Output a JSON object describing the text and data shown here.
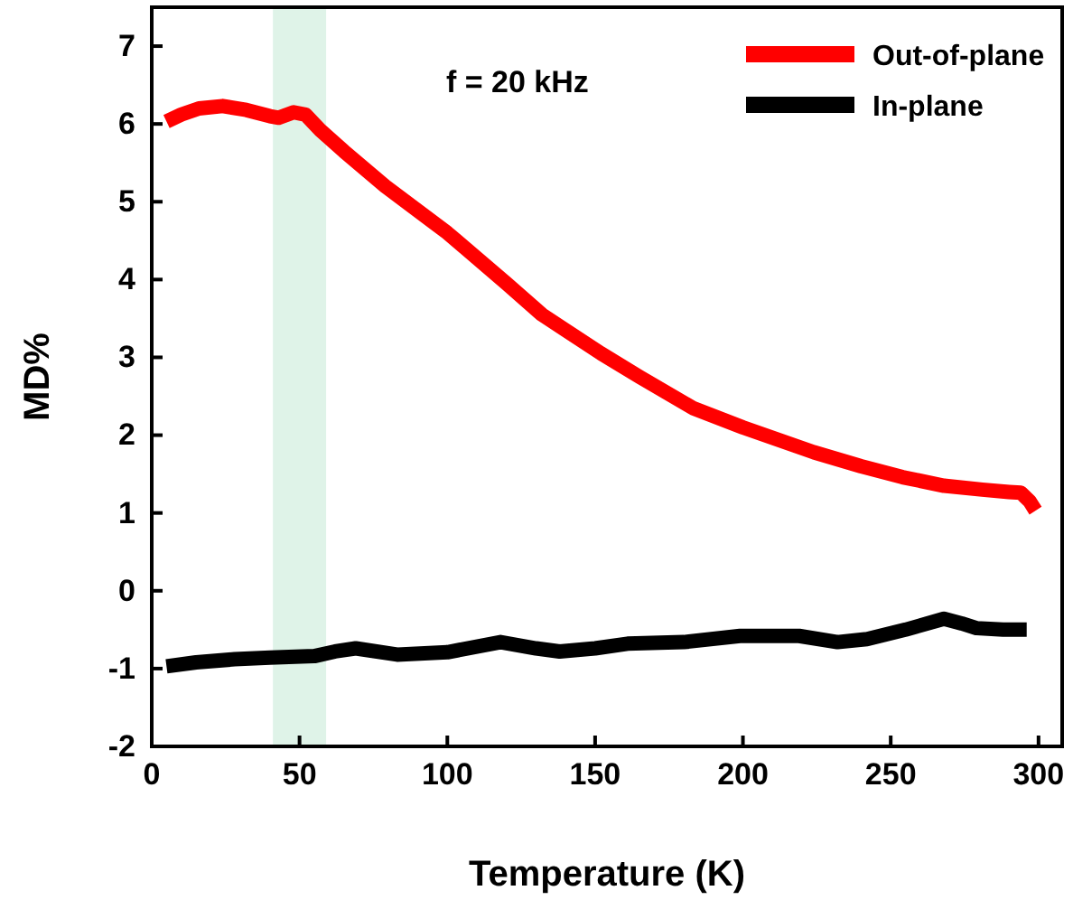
{
  "chart_data": {
    "type": "line",
    "xlabel": "Temperature (K)",
    "ylabel": "MD%",
    "xlim": [
      0,
      308
    ],
    "xticks": [
      0,
      50,
      100,
      150,
      200,
      250,
      300
    ],
    "ylim": [
      -2,
      7.5
    ],
    "yticks": [
      -2,
      -1,
      0,
      1,
      2,
      3,
      4,
      5,
      6,
      7
    ],
    "legend": "top right",
    "grid": false,
    "marker": "none",
    "line_style": "solid",
    "annotations": [
      "f = 20 kHz"
    ],
    "bands": [
      {
        "axis": "x",
        "from": 41,
        "to": 59,
        "color": "#dff3e8"
      }
    ],
    "series": [
      {
        "name": "Out-of-plane",
        "color": "#ff0000",
        "x": [
          5,
          10,
          16,
          24,
          32,
          40,
          43,
          48,
          52,
          57,
          65,
          79,
          100,
          120,
          132,
          140,
          152,
          165,
          183,
          200,
          224,
          240,
          254,
          268,
          281,
          290,
          294,
          297,
          299
        ],
        "values": [
          6.03,
          6.12,
          6.2,
          6.23,
          6.18,
          6.1,
          6.08,
          6.15,
          6.12,
          5.92,
          5.65,
          5.2,
          4.6,
          3.95,
          3.55,
          3.35,
          3.05,
          2.75,
          2.35,
          2.1,
          1.78,
          1.6,
          1.46,
          1.35,
          1.3,
          1.27,
          1.26,
          1.15,
          1.03
        ]
      },
      {
        "name": "In-plane",
        "color": "#000000",
        "x": [
          5,
          15,
          28,
          40,
          55,
          62,
          69,
          83,
          100,
          118,
          130,
          138,
          150,
          161,
          180,
          199,
          219,
          232,
          242,
          255,
          268,
          274,
          279,
          288,
          296
        ],
        "values": [
          -0.97,
          -0.92,
          -0.88,
          -0.86,
          -0.84,
          -0.78,
          -0.74,
          -0.82,
          -0.79,
          -0.66,
          -0.74,
          -0.78,
          -0.74,
          -0.68,
          -0.66,
          -0.58,
          -0.58,
          -0.66,
          -0.62,
          -0.5,
          -0.36,
          -0.42,
          -0.48,
          -0.5,
          -0.5
        ]
      }
    ]
  }
}
